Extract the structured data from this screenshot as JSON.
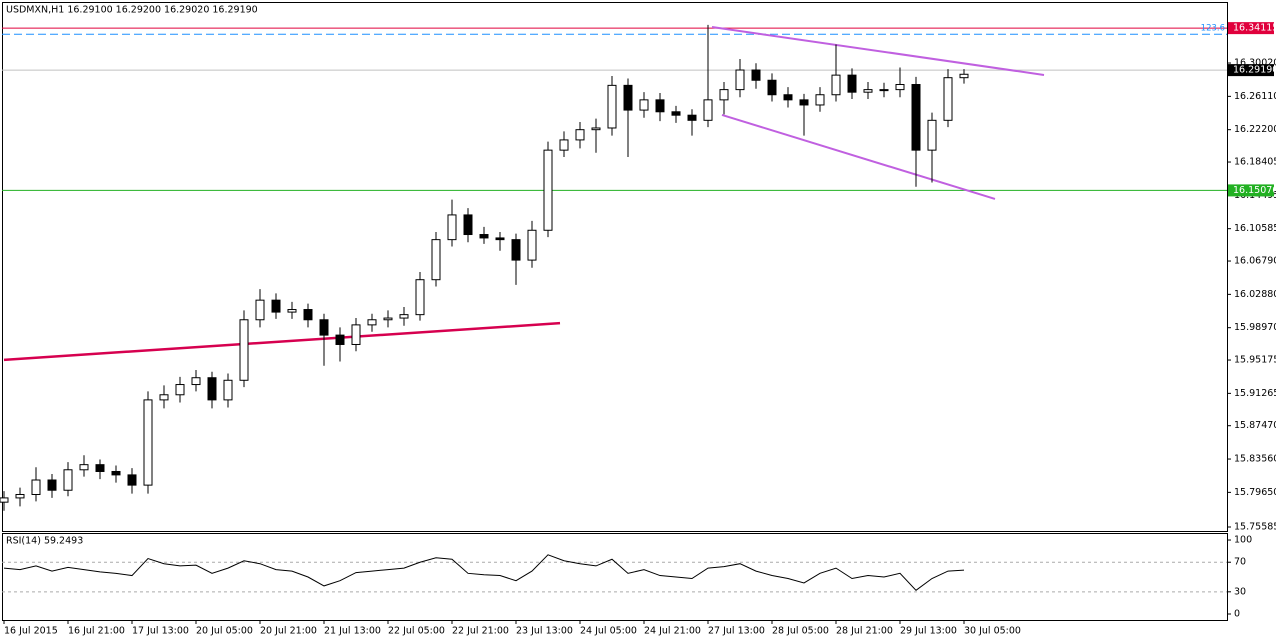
{
  "chart_data": [
    {
      "type": "candlestick",
      "title": "USDMXN,H1  16.29100 16.29200 16.29020 16.29190",
      "x": [
        0,
        4,
        8,
        12,
        16,
        20,
        24,
        28,
        32,
        36,
        40,
        44,
        48,
        52,
        56,
        60,
        64,
        68,
        72,
        76,
        80,
        84,
        88,
        92,
        96,
        100,
        104,
        108,
        112,
        116,
        120,
        124,
        128,
        132,
        136,
        140,
        144,
        148,
        152,
        156,
        160,
        164,
        168,
        172,
        176,
        180,
        184,
        188,
        192,
        196,
        200,
        204,
        208,
        212,
        216,
        220,
        224,
        228,
        232,
        236,
        240
      ],
      "candles": [
        [
          15.785,
          15.798,
          15.775,
          15.79
        ],
        [
          15.79,
          15.802,
          15.78,
          15.794
        ],
        [
          15.794,
          15.826,
          15.786,
          15.811
        ],
        [
          15.811,
          15.818,
          15.79,
          15.799
        ],
        [
          15.799,
          15.832,
          15.792,
          15.823
        ],
        [
          15.823,
          15.84,
          15.815,
          15.829
        ],
        [
          15.829,
          15.835,
          15.812,
          15.821
        ],
        [
          15.821,
          15.828,
          15.808,
          15.817
        ],
        [
          15.817,
          15.825,
          15.795,
          15.805
        ],
        [
          15.805,
          15.915,
          15.795,
          15.905
        ],
        [
          15.905,
          15.922,
          15.895,
          15.911
        ],
        [
          15.911,
          15.932,
          15.902,
          15.923
        ],
        [
          15.923,
          15.94,
          15.915,
          15.931
        ],
        [
          15.931,
          15.938,
          15.895,
          15.905
        ],
        [
          15.905,
          15.936,
          15.896,
          15.928
        ],
        [
          15.928,
          16.01,
          15.92,
          15.999
        ],
        [
          15.999,
          16.035,
          15.99,
          16.022
        ],
        [
          16.022,
          16.03,
          16.0,
          16.008
        ],
        [
          16.008,
          16.02,
          16.0,
          16.011
        ],
        [
          16.011,
          16.018,
          15.99,
          15.999
        ],
        [
          15.999,
          16.006,
          15.945,
          15.981
        ],
        [
          15.981,
          15.99,
          15.95,
          15.97
        ],
        [
          15.97,
          16.001,
          15.962,
          15.993
        ],
        [
          15.993,
          16.006,
          15.985,
          15.999
        ],
        [
          15.999,
          16.01,
          15.99,
          16.001
        ],
        [
          16.001,
          16.014,
          15.992,
          16.005
        ],
        [
          16.005,
          16.055,
          15.998,
          16.046
        ],
        [
          16.046,
          16.102,
          16.038,
          16.093
        ],
        [
          16.093,
          16.14,
          16.085,
          16.122
        ],
        [
          16.122,
          16.13,
          16.09,
          16.099
        ],
        [
          16.099,
          16.108,
          16.088,
          16.095
        ],
        [
          16.095,
          16.102,
          16.08,
          16.093
        ],
        [
          16.093,
          16.1,
          16.04,
          16.069
        ],
        [
          16.069,
          16.115,
          16.06,
          16.104
        ],
        [
          16.104,
          16.208,
          16.096,
          16.198
        ],
        [
          16.198,
          16.22,
          16.19,
          16.21
        ],
        [
          16.21,
          16.231,
          16.2,
          16.222
        ],
        [
          16.222,
          16.235,
          16.195,
          16.224
        ],
        [
          16.224,
          16.285,
          16.215,
          16.274
        ],
        [
          16.274,
          16.282,
          16.19,
          16.245
        ],
        [
          16.245,
          16.266,
          16.236,
          16.257
        ],
        [
          16.257,
          16.265,
          16.232,
          16.243
        ],
        [
          16.243,
          16.25,
          16.23,
          16.239
        ],
        [
          16.239,
          16.246,
          16.215,
          16.233
        ],
        [
          16.233,
          16.345,
          16.225,
          16.257
        ],
        [
          16.257,
          16.278,
          16.24,
          16.269
        ],
        [
          16.269,
          16.305,
          16.26,
          16.292
        ],
        [
          16.292,
          16.3,
          16.27,
          16.28
        ],
        [
          16.28,
          16.288,
          16.255,
          16.263
        ],
        [
          16.263,
          16.272,
          16.248,
          16.257
        ],
        [
          16.257,
          16.264,
          16.215,
          16.251
        ],
        [
          16.251,
          16.272,
          16.243,
          16.263
        ],
        [
          16.263,
          16.322,
          16.255,
          16.286
        ],
        [
          16.286,
          16.294,
          16.258,
          16.266
        ],
        [
          16.266,
          16.278,
          16.258,
          16.269
        ],
        [
          16.269,
          16.277,
          16.26,
          16.269
        ],
        [
          16.269,
          16.295,
          16.26,
          16.275
        ],
        [
          16.275,
          16.284,
          16.155,
          16.198
        ],
        [
          16.198,
          16.242,
          16.16,
          16.233
        ],
        [
          16.233,
          16.293,
          16.225,
          16.283
        ],
        [
          16.283,
          16.293,
          16.276,
          16.287
        ]
      ],
      "xlim": [
        -0.5,
        305.75
      ],
      "ylim": [
        15.75,
        16.3718
      ],
      "xticks": [
        {
          "value": 0,
          "label": "16 Jul 2015"
        },
        {
          "value": 16,
          "label": "16 Jul 21:00"
        },
        {
          "value": 32,
          "label": "17 Jul 13:00"
        },
        {
          "value": 48,
          "label": "20 Jul 05:00"
        },
        {
          "value": 64,
          "label": "20 Jul 21:00"
        },
        {
          "value": 80,
          "label": "21 Jul 13:00"
        },
        {
          "value": 96,
          "label": "22 Jul 05:00"
        },
        {
          "value": 112,
          "label": "22 Jul 21:00"
        },
        {
          "value": 128,
          "label": "23 Jul 13:00"
        },
        {
          "value": 144,
          "label": "24 Jul 05:00"
        },
        {
          "value": 160,
          "label": "24 Jul 21:00"
        },
        {
          "value": 176,
          "label": "27 Jul 13:00"
        },
        {
          "value": 192,
          "label": "28 Jul 05:00"
        },
        {
          "value": 208,
          "label": "28 Jul 21:00"
        },
        {
          "value": 224,
          "label": "29 Jul 13:00"
        },
        {
          "value": 240,
          "label": "30 Jul 05:00"
        }
      ],
      "yticks": [
        {
          "value": 16.3002,
          "label": "16.30020"
        },
        {
          "value": 16.2611,
          "label": "16.26110"
        },
        {
          "value": 16.222,
          "label": "16.22200"
        },
        {
          "value": 16.18405,
          "label": "16.18405"
        },
        {
          "value": 16.14495,
          "label": "16.14495"
        },
        {
          "value": 16.10585,
          "label": "16.10585"
        },
        {
          "value": 16.0679,
          "label": "16.06790"
        },
        {
          "value": 16.0288,
          "label": "16.02880"
        },
        {
          "value": 15.9897,
          "label": "15.98970"
        },
        {
          "value": 15.95175,
          "label": "15.95175"
        },
        {
          "value": 15.91265,
          "label": "15.91265"
        },
        {
          "value": 15.8747,
          "label": "15.87470"
        },
        {
          "value": 15.8356,
          "label": "15.83560"
        },
        {
          "value": 15.7965,
          "label": "15.79650"
        },
        {
          "value": 15.75585,
          "label": "15.75585"
        }
      ],
      "levels": [
        {
          "value": 16.34115,
          "label": "16.34115",
          "color": "#e0003c",
          "box": "#e0003c"
        },
        {
          "value": 16.334,
          "label": "123.6",
          "color": "#1e90ff",
          "dashed": true
        },
        {
          "value": 16.2919,
          "label": "16.29190",
          "color": "#c0c0c0",
          "box": "#000000"
        },
        {
          "value": 16.15076,
          "label": "16.15076",
          "color": "#22b022",
          "box": "#22b022"
        }
      ],
      "lines": [
        {
          "x": [
            0,
            139
          ],
          "y": [
            15.952,
            15.995
          ],
          "color": "#d6004f",
          "width": 2.5
        },
        {
          "x": [
            177,
            260
          ],
          "y": [
            16.3425,
            16.2862
          ],
          "color": "#c060e0",
          "width": 2
        },
        {
          "x": [
            179.5,
            247.75
          ],
          "y": [
            16.2393,
            16.1407
          ],
          "color": "#c060e0",
          "width": 2
        }
      ],
      "up_color": "#ffffff",
      "down_color": "#000000"
    },
    {
      "type": "line",
      "title": "RSI(14) 59.2493",
      "values": [
        62,
        60,
        65,
        58,
        63,
        60,
        57,
        55,
        52,
        75,
        68,
        65,
        66,
        55,
        62,
        72,
        68,
        60,
        58,
        50,
        38,
        45,
        56,
        58,
        60,
        62,
        70,
        76,
        74,
        55,
        53,
        52,
        45,
        58,
        80,
        72,
        68,
        65,
        74,
        55,
        60,
        52,
        50,
        48,
        62,
        64,
        68,
        58,
        52,
        48,
        42,
        55,
        62,
        48,
        52,
        50,
        55,
        32,
        48,
        58,
        59.2493
      ],
      "ylim": [
        -8.1,
        109.5
      ],
      "yticks": [
        0,
        30,
        70,
        100
      ],
      "dashed_levels": [
        30,
        70
      ],
      "color": "#000000"
    }
  ]
}
